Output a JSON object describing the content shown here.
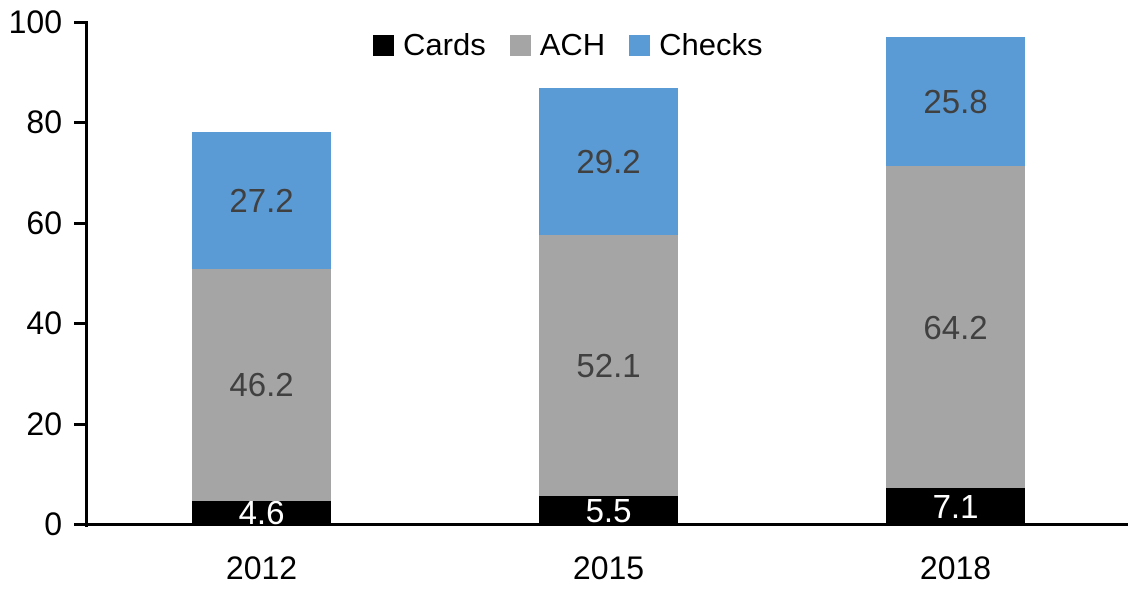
{
  "chart_data": {
    "type": "bar",
    "stacked": true,
    "title": "",
    "xlabel": "",
    "ylabel": "",
    "categories": [
      "2012",
      "2015",
      "2018"
    ],
    "series": [
      {
        "name": "Cards",
        "values": [
          4.6,
          5.5,
          7.1
        ],
        "color": "#000000",
        "label_color": "#FFFFFF"
      },
      {
        "name": "ACH",
        "values": [
          46.2,
          52.1,
          64.2
        ],
        "color": "#A5A5A5",
        "label_color": "#404040"
      },
      {
        "name": "Checks",
        "values": [
          27.2,
          29.2,
          25.8
        ],
        "color": "#5B9BD5",
        "label_color": "#404040"
      }
    ],
    "totals": [
      78.0,
      86.8,
      97.1
    ],
    "ylim": [
      0,
      100
    ],
    "yticks": [
      0,
      20,
      40,
      60,
      80,
      100
    ],
    "grid": false,
    "legend_position": "top-center",
    "axis_color": "#000000",
    "background_color": "#FFFFFF"
  }
}
